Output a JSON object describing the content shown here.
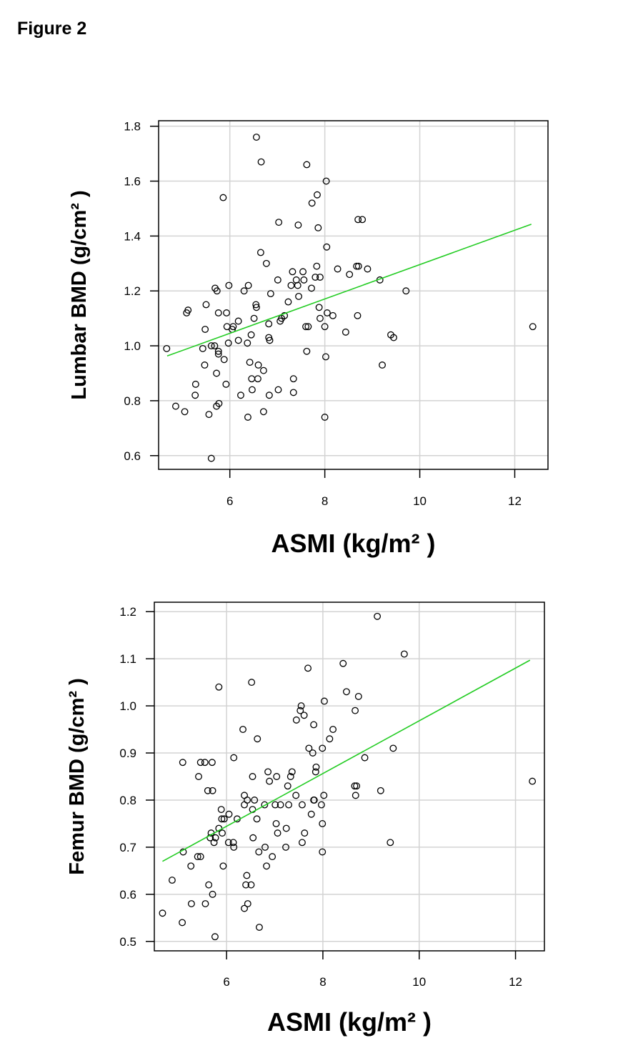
{
  "figure_title": "Figure 2",
  "colors": {
    "fit_line": "#22cc22",
    "grid": "#d3d3d3",
    "points": "#000000",
    "frame": "#000000"
  },
  "chart_data": [
    {
      "type": "scatter",
      "title": "",
      "xlabel": "ASMI (kg/m²  )",
      "ylabel": "Lumbar BMD (g/cm² )",
      "xlim": [
        4.5,
        12.7
      ],
      "ylim": [
        0.55,
        1.82
      ],
      "x_ticks": [
        6,
        8,
        10,
        12
      ],
      "x_tick_labels": [
        "6",
        "8",
        "10",
        "12"
      ],
      "y_ticks": [
        0.6,
        0.8,
        1.0,
        1.2,
        1.4,
        1.6,
        1.8
      ],
      "y_tick_labels": [
        "0.6",
        "0.8",
        "1.0",
        "1.2",
        "1.4",
        "1.6",
        "1.8"
      ],
      "grid": true,
      "legend": "none",
      "fit_line": {
        "x": [
          4.68,
          12.35
        ],
        "y": [
          0.963,
          1.443
        ]
      },
      "points": [
        [
          6.56,
          1.76
        ],
        [
          6.66,
          1.67
        ],
        [
          7.62,
          1.66
        ],
        [
          8.03,
          1.6
        ],
        [
          5.86,
          1.54
        ],
        [
          7.84,
          1.55
        ],
        [
          7.73,
          1.52
        ],
        [
          7.03,
          1.45
        ],
        [
          7.44,
          1.44
        ],
        [
          7.86,
          1.43
        ],
        [
          8.7,
          1.46
        ],
        [
          8.79,
          1.46
        ],
        [
          8.04,
          1.36
        ],
        [
          6.65,
          1.34
        ],
        [
          6.77,
          1.3
        ],
        [
          7.32,
          1.27
        ],
        [
          7.54,
          1.27
        ],
        [
          7.83,
          1.29
        ],
        [
          8.27,
          1.28
        ],
        [
          8.67,
          1.29
        ],
        [
          8.71,
          1.29
        ],
        [
          8.9,
          1.28
        ],
        [
          7.4,
          1.24
        ],
        [
          7.56,
          1.24
        ],
        [
          7.01,
          1.24
        ],
        [
          7.8,
          1.25
        ],
        [
          8.52,
          1.26
        ],
        [
          7.9,
          1.25
        ],
        [
          9.16,
          1.24
        ],
        [
          5.98,
          1.22
        ],
        [
          6.39,
          1.22
        ],
        [
          7.29,
          1.22
        ],
        [
          5.69,
          1.21
        ],
        [
          7.43,
          1.22
        ],
        [
          7.72,
          1.21
        ],
        [
          5.73,
          1.2
        ],
        [
          6.3,
          1.2
        ],
        [
          6.86,
          1.19
        ],
        [
          9.71,
          1.2
        ],
        [
          7.45,
          1.18
        ],
        [
          7.23,
          1.16
        ],
        [
          5.5,
          1.15
        ],
        [
          6.55,
          1.15
        ],
        [
          6.56,
          1.14
        ],
        [
          7.88,
          1.14
        ],
        [
          5.09,
          1.12
        ],
        [
          5.76,
          1.12
        ],
        [
          5.93,
          1.12
        ],
        [
          5.12,
          1.13
        ],
        [
          7.15,
          1.11
        ],
        [
          8.05,
          1.12
        ],
        [
          8.17,
          1.11
        ],
        [
          8.69,
          1.11
        ],
        [
          6.51,
          1.1
        ],
        [
          7.9,
          1.1
        ],
        [
          6.18,
          1.09
        ],
        [
          7.06,
          1.09
        ],
        [
          7.09,
          1.1
        ],
        [
          6.82,
          1.08
        ],
        [
          5.94,
          1.07
        ],
        [
          6.05,
          1.06
        ],
        [
          6.07,
          1.07
        ],
        [
          7.6,
          1.07
        ],
        [
          7.65,
          1.07
        ],
        [
          8.0,
          1.07
        ],
        [
          5.48,
          1.06
        ],
        [
          8.44,
          1.05
        ],
        [
          9.39,
          1.04
        ],
        [
          9.45,
          1.03
        ],
        [
          12.38,
          1.07
        ],
        [
          6.45,
          1.04
        ],
        [
          6.82,
          1.03
        ],
        [
          6.84,
          1.02
        ],
        [
          6.18,
          1.02
        ],
        [
          5.97,
          1.01
        ],
        [
          6.37,
          1.01
        ],
        [
          4.67,
          0.99
        ],
        [
          5.43,
          0.99
        ],
        [
          5.61,
          1.0
        ],
        [
          5.68,
          1.0
        ],
        [
          5.76,
          0.98
        ],
        [
          5.76,
          0.97
        ],
        [
          7.62,
          0.98
        ],
        [
          5.88,
          0.95
        ],
        [
          8.02,
          0.96
        ],
        [
          5.47,
          0.93
        ],
        [
          6.42,
          0.94
        ],
        [
          6.6,
          0.93
        ],
        [
          6.71,
          0.91
        ],
        [
          9.21,
          0.93
        ],
        [
          5.72,
          0.9
        ],
        [
          6.46,
          0.88
        ],
        [
          6.59,
          0.88
        ],
        [
          7.34,
          0.88
        ],
        [
          5.28,
          0.86
        ],
        [
          5.92,
          0.86
        ],
        [
          5.27,
          0.82
        ],
        [
          6.47,
          0.84
        ],
        [
          7.02,
          0.84
        ],
        [
          7.34,
          0.83
        ],
        [
          6.23,
          0.82
        ],
        [
          6.83,
          0.82
        ],
        [
          5.77,
          0.79
        ],
        [
          4.86,
          0.78
        ],
        [
          5.72,
          0.78
        ],
        [
          5.05,
          0.76
        ],
        [
          5.56,
          0.75
        ],
        [
          6.71,
          0.76
        ],
        [
          6.38,
          0.74
        ],
        [
          8.0,
          0.74
        ],
        [
          5.61,
          0.59
        ]
      ]
    },
    {
      "type": "scatter",
      "title": "",
      "xlabel": "ASMI (kg/m²  )",
      "ylabel": "Femur BMD (g/cm² )",
      "xlim": [
        4.5,
        12.6
      ],
      "ylim": [
        0.48,
        1.22
      ],
      "x_ticks": [
        6,
        8,
        10,
        12
      ],
      "x_tick_labels": [
        "6",
        "8",
        "10",
        "12"
      ],
      "y_ticks": [
        0.5,
        0.6,
        0.7,
        0.8,
        0.9,
        1.0,
        1.1,
        1.2
      ],
      "y_tick_labels": [
        "0.5",
        "0.6",
        "0.7",
        "0.8",
        "0.9",
        "1.0",
        "1.1",
        "1.2"
      ],
      "grid": true,
      "legend": "none",
      "fit_line": {
        "x": [
          4.67,
          12.3
        ],
        "y": [
          0.67,
          1.097
        ]
      },
      "points": [
        [
          9.13,
          1.19
        ],
        [
          9.69,
          1.11
        ],
        [
          8.42,
          1.09
        ],
        [
          7.69,
          1.08
        ],
        [
          6.52,
          1.05
        ],
        [
          5.84,
          1.04
        ],
        [
          8.49,
          1.03
        ],
        [
          8.74,
          1.02
        ],
        [
          8.03,
          1.01
        ],
        [
          7.55,
          1.0
        ],
        [
          7.53,
          0.99
        ],
        [
          8.67,
          0.99
        ],
        [
          7.45,
          0.97
        ],
        [
          7.61,
          0.98
        ],
        [
          7.81,
          0.96
        ],
        [
          6.34,
          0.95
        ],
        [
          8.21,
          0.95
        ],
        [
          6.64,
          0.93
        ],
        [
          8.14,
          0.93
        ],
        [
          7.71,
          0.91
        ],
        [
          7.99,
          0.91
        ],
        [
          9.46,
          0.91
        ],
        [
          8.87,
          0.89
        ],
        [
          7.79,
          0.9
        ],
        [
          6.15,
          0.89
        ],
        [
          5.09,
          0.88
        ],
        [
          5.46,
          0.88
        ],
        [
          5.55,
          0.88
        ],
        [
          5.7,
          0.88
        ],
        [
          7.86,
          0.87
        ],
        [
          7.85,
          0.86
        ],
        [
          6.86,
          0.86
        ],
        [
          7.36,
          0.86
        ],
        [
          5.42,
          0.85
        ],
        [
          6.54,
          0.85
        ],
        [
          7.33,
          0.85
        ],
        [
          7.04,
          0.85
        ],
        [
          6.89,
          0.84
        ],
        [
          12.35,
          0.84
        ],
        [
          8.66,
          0.83
        ],
        [
          8.7,
          0.83
        ],
        [
          7.27,
          0.83
        ],
        [
          5.61,
          0.82
        ],
        [
          5.71,
          0.82
        ],
        [
          9.2,
          0.82
        ],
        [
          8.68,
          0.81
        ],
        [
          6.37,
          0.81
        ],
        [
          6.43,
          0.8
        ],
        [
          7.44,
          0.81
        ],
        [
          7.81,
          0.8
        ],
        [
          8.02,
          0.81
        ],
        [
          6.58,
          0.8
        ],
        [
          6.79,
          0.79
        ],
        [
          7.01,
          0.79
        ],
        [
          7.12,
          0.79
        ],
        [
          7.29,
          0.79
        ],
        [
          7.57,
          0.79
        ],
        [
          7.82,
          0.8
        ],
        [
          7.97,
          0.79
        ],
        [
          5.89,
          0.78
        ],
        [
          6.37,
          0.79
        ],
        [
          6.54,
          0.78
        ],
        [
          6.05,
          0.77
        ],
        [
          5.95,
          0.76
        ],
        [
          5.9,
          0.76
        ],
        [
          6.22,
          0.76
        ],
        [
          6.63,
          0.76
        ],
        [
          7.03,
          0.75
        ],
        [
          7.99,
          0.75
        ],
        [
          7.24,
          0.74
        ],
        [
          7.76,
          0.77
        ],
        [
          5.68,
          0.73
        ],
        [
          7.62,
          0.73
        ],
        [
          5.84,
          0.74
        ],
        [
          5.66,
          0.72
        ],
        [
          5.77,
          0.72
        ],
        [
          5.91,
          0.73
        ],
        [
          7.06,
          0.73
        ],
        [
          6.04,
          0.71
        ],
        [
          5.74,
          0.71
        ],
        [
          6.55,
          0.72
        ],
        [
          6.14,
          0.71
        ],
        [
          6.15,
          0.7
        ],
        [
          7.57,
          0.71
        ],
        [
          9.4,
          0.71
        ],
        [
          5.1,
          0.69
        ],
        [
          6.8,
          0.7
        ],
        [
          7.23,
          0.7
        ],
        [
          7.99,
          0.69
        ],
        [
          5.4,
          0.68
        ],
        [
          5.46,
          0.68
        ],
        [
          6.67,
          0.69
        ],
        [
          6.95,
          0.68
        ],
        [
          5.26,
          0.66
        ],
        [
          5.93,
          0.66
        ],
        [
          6.83,
          0.66
        ],
        [
          6.42,
          0.64
        ],
        [
          4.87,
          0.63
        ],
        [
          5.63,
          0.62
        ],
        [
          6.4,
          0.62
        ],
        [
          6.51,
          0.62
        ],
        [
          5.71,
          0.6
        ],
        [
          6.44,
          0.58
        ],
        [
          5.27,
          0.58
        ],
        [
          5.56,
          0.58
        ],
        [
          4.67,
          0.56
        ],
        [
          6.37,
          0.57
        ],
        [
          5.08,
          0.54
        ],
        [
          6.68,
          0.53
        ],
        [
          5.76,
          0.51
        ]
      ]
    }
  ]
}
